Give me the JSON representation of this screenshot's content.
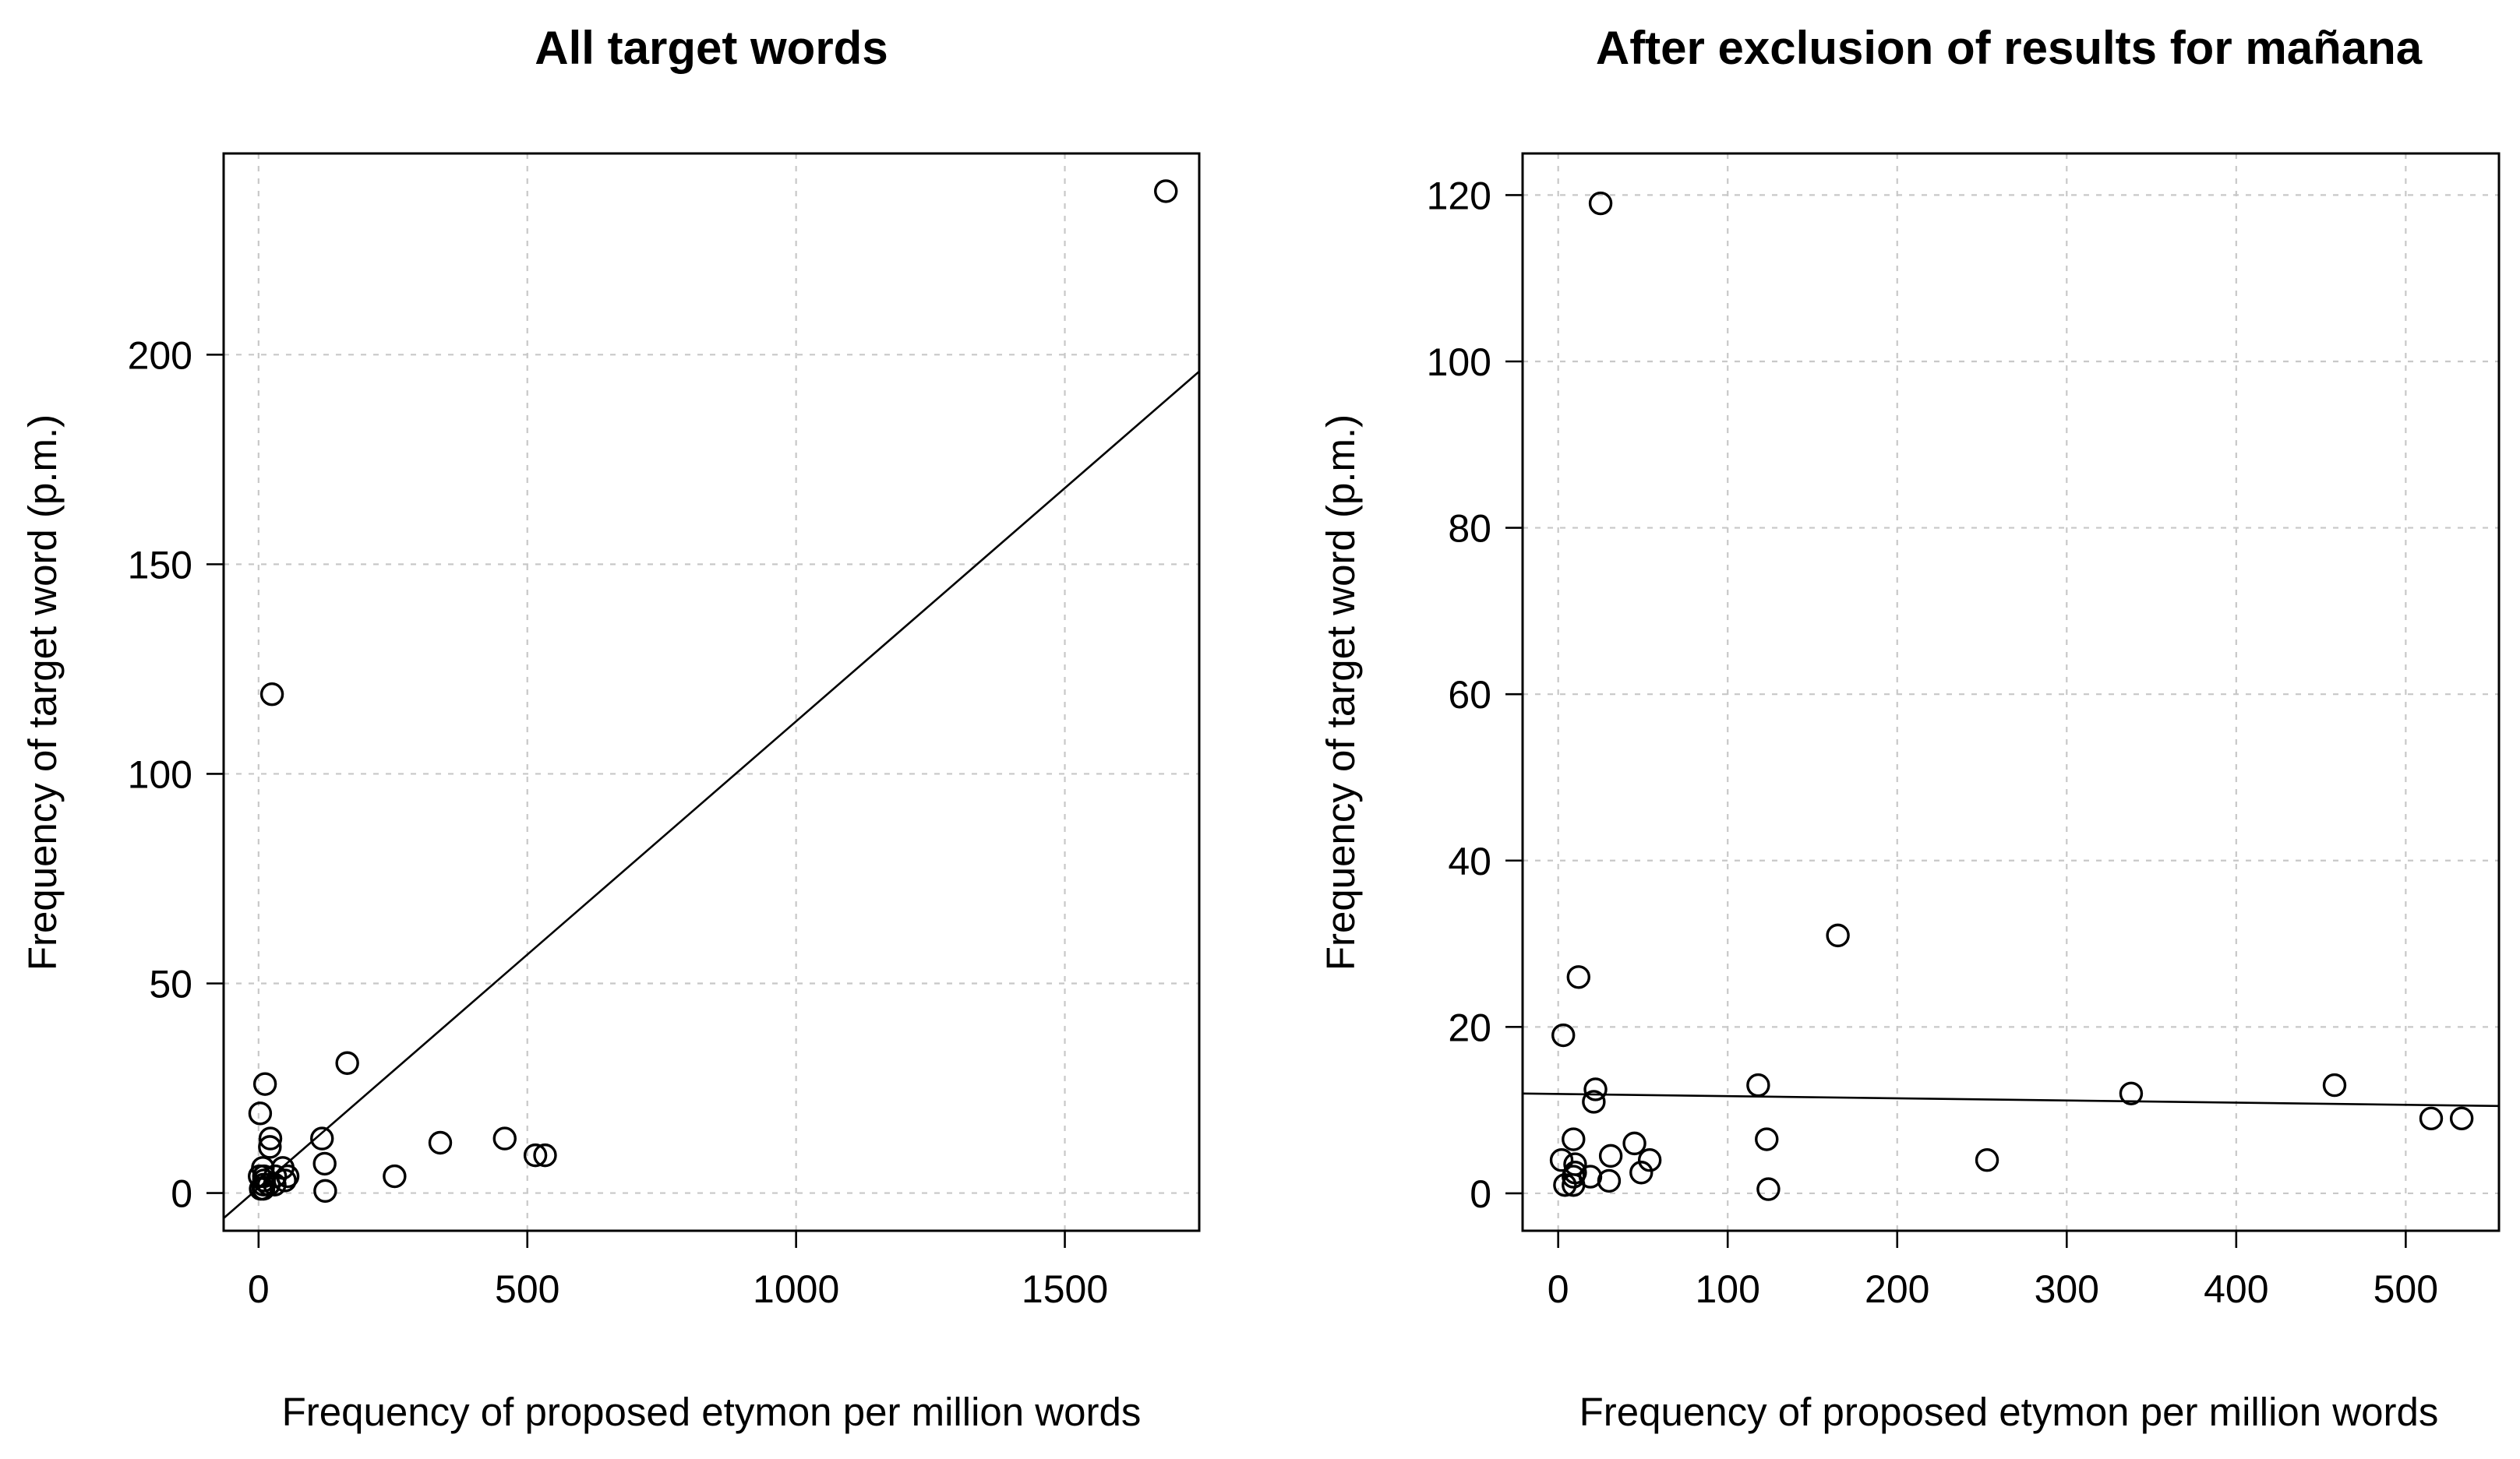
{
  "chart_data": [
    {
      "type": "scatter",
      "title": "All target words",
      "xlabel": "Frequency of proposed etymon per million words",
      "ylabel": "Frequency of target word (p.m.)",
      "xlim": [
        -65,
        1750
      ],
      "ylim": [
        -9,
        248
      ],
      "xticks": [
        0,
        500,
        1000,
        1500
      ],
      "yticks": [
        0,
        50,
        100,
        150,
        200
      ],
      "grid": true,
      "fit_line": {
        "x": [
          -65,
          1750
        ],
        "y": [
          -6,
          196
        ]
      },
      "points": [
        {
          "x": 1688,
          "y": 239
        },
        {
          "x": 25,
          "y": 119
        },
        {
          "x": 165,
          "y": 31
        },
        {
          "x": 12,
          "y": 26
        },
        {
          "x": 3,
          "y": 19
        },
        {
          "x": 118,
          "y": 13
        },
        {
          "x": 22,
          "y": 13
        },
        {
          "x": 458,
          "y": 13
        },
        {
          "x": 338,
          "y": 12
        },
        {
          "x": 21,
          "y": 11
        },
        {
          "x": 533,
          "y": 9
        },
        {
          "x": 515,
          "y": 9
        },
        {
          "x": 123,
          "y": 7
        },
        {
          "x": 8,
          "y": 6
        },
        {
          "x": 45,
          "y": 6
        },
        {
          "x": 2,
          "y": 4
        },
        {
          "x": 253,
          "y": 4
        },
        {
          "x": 10,
          "y": 4
        },
        {
          "x": 31,
          "y": 4
        },
        {
          "x": 54,
          "y": 4
        },
        {
          "x": 10,
          "y": 3
        },
        {
          "x": 49,
          "y": 3
        },
        {
          "x": 9,
          "y": 2
        },
        {
          "x": 19,
          "y": 2
        },
        {
          "x": 30,
          "y": 2
        },
        {
          "x": 4,
          "y": 1
        },
        {
          "x": 9,
          "y": 1
        },
        {
          "x": 124,
          "y": 0.5
        }
      ]
    },
    {
      "type": "scatter",
      "title": "After exclusion of results for mañana",
      "xlabel": "Frequency of proposed etymon per million words",
      "ylabel": "Frequency of target word (p.m.)",
      "xlim": [
        -21,
        555
      ],
      "ylim": [
        -4.5,
        125
      ],
      "xticks": [
        0,
        100,
        200,
        300,
        400,
        500
      ],
      "yticks": [
        0,
        20,
        40,
        60,
        80,
        100,
        120
      ],
      "grid": true,
      "fit_line": {
        "x": [
          -21,
          555
        ],
        "y": [
          12,
          10.5
        ]
      },
      "points": [
        {
          "x": 25,
          "y": 119
        },
        {
          "x": 165,
          "y": 31
        },
        {
          "x": 12,
          "y": 26
        },
        {
          "x": 3,
          "y": 19
        },
        {
          "x": 118,
          "y": 13
        },
        {
          "x": 22,
          "y": 12.5
        },
        {
          "x": 458,
          "y": 13
        },
        {
          "x": 338,
          "y": 12
        },
        {
          "x": 21,
          "y": 11
        },
        {
          "x": 533,
          "y": 9
        },
        {
          "x": 515,
          "y": 9
        },
        {
          "x": 123,
          "y": 6.5
        },
        {
          "x": 9,
          "y": 6.5
        },
        {
          "x": 45,
          "y": 6
        },
        {
          "x": 2,
          "y": 4
        },
        {
          "x": 253,
          "y": 4
        },
        {
          "x": 10,
          "y": 3.5
        },
        {
          "x": 31,
          "y": 4.5
        },
        {
          "x": 54,
          "y": 4
        },
        {
          "x": 10,
          "y": 2.5
        },
        {
          "x": 49,
          "y": 2.5
        },
        {
          "x": 9,
          "y": 2
        },
        {
          "x": 19,
          "y": 2
        },
        {
          "x": 30,
          "y": 1.5
        },
        {
          "x": 4,
          "y": 1
        },
        {
          "x": 9,
          "y": 1
        },
        {
          "x": 124,
          "y": 0.5
        }
      ]
    }
  ]
}
